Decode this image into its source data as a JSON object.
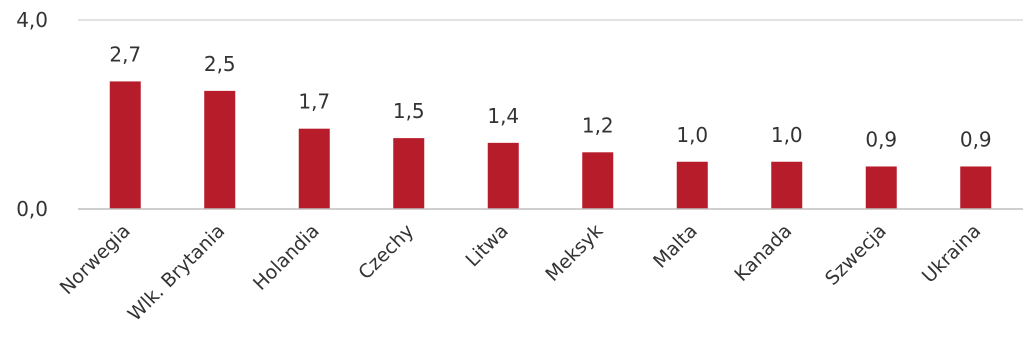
{
  "chart_data": {
    "type": "bar",
    "categories": [
      "Norwegia",
      "Wlk. Brytania",
      "Holandia",
      "Czechy",
      "Litwa",
      "Meksyk",
      "Malta",
      "Kanada",
      "Szwecja",
      "Ukraina"
    ],
    "values": [
      2.7,
      2.5,
      1.7,
      1.5,
      1.4,
      1.2,
      1.0,
      1.0,
      0.9,
      0.9
    ],
    "value_labels": [
      "2,7",
      "2,5",
      "1,7",
      "1,5",
      "1,4",
      "1,2",
      "1,0",
      "1,0",
      "0,9",
      "0,9"
    ],
    "y_ticks": [
      0.0,
      4.0
    ],
    "y_tick_labels": [
      "0,0",
      "4,0"
    ],
    "ylim": [
      0,
      4
    ],
    "grid": true,
    "legend": "none",
    "title": "",
    "xlabel": "",
    "ylabel": "",
    "colors": {
      "bar": "#B71C2B",
      "grid": "#D9D9D9",
      "axis": "#BFBFBF",
      "text": "#333333"
    }
  }
}
